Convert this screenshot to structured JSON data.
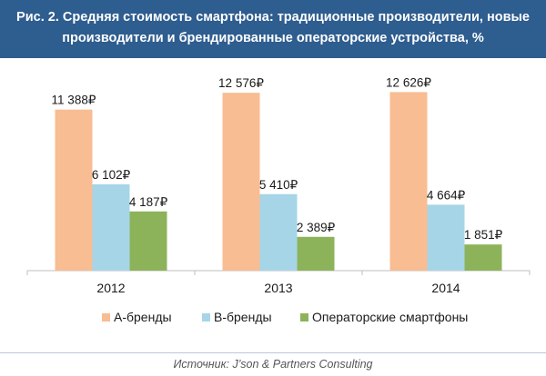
{
  "header": {
    "title": "Рис. 2. Средняя стоимость смартфона: традиционные производители, новые производители и брендированные операторские устройства, %"
  },
  "source": {
    "text": "Источник: J’son & Partners Consulting"
  },
  "colors": {
    "header_bg": "#2e5d8f",
    "series_a": "#f8bd92",
    "series_b": "#a6d5e8",
    "series_c": "#8db35a"
  },
  "chart_data": {
    "type": "bar",
    "categories": [
      "2012",
      "2013",
      "2014"
    ],
    "series": [
      {
        "name": "А-бренды",
        "values": [
          11388,
          12576,
          12626
        ],
        "labels": [
          "11 388₽",
          "12 576₽",
          "12 626₽"
        ]
      },
      {
        "name": "В-бренды",
        "values": [
          6102,
          5410,
          4664
        ],
        "labels": [
          "6 102₽",
          "5 410₽",
          "4 664₽"
        ]
      },
      {
        "name": "Операторские смартфоны",
        "values": [
          4187,
          2389,
          1851
        ],
        "labels": [
          "4 187₽",
          "2 389₽",
          "1 851₽"
        ]
      }
    ],
    "ylim": [
      0,
      14000
    ],
    "grid": false,
    "legend_position": "bottom"
  }
}
